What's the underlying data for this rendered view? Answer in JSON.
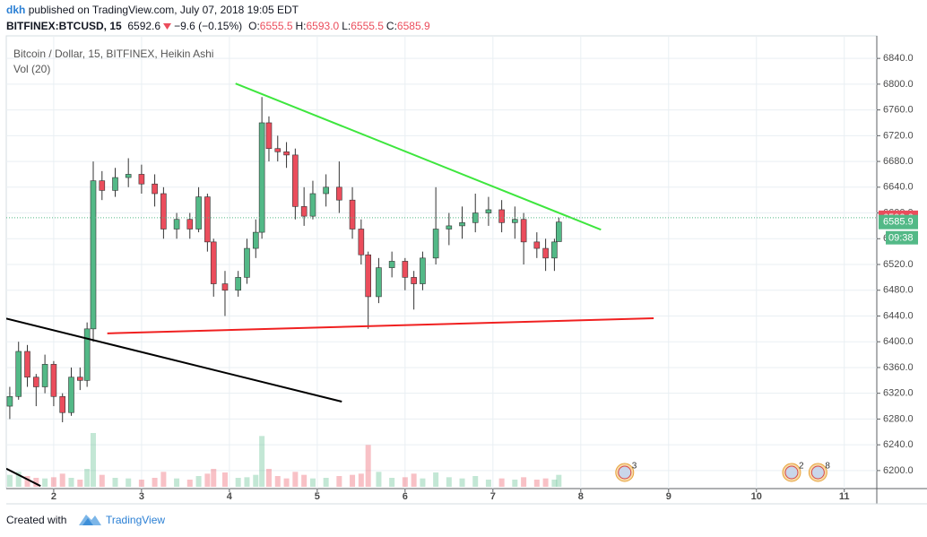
{
  "header": {
    "author": "dkh",
    "published": "published on TradingView.com, July 07, 2018 19:05 EDT",
    "symbol": "BITFINEX:BTCUSD, 15",
    "price": "6592.6",
    "change": "−9.6 (−0.15%)",
    "ohlc": [
      {
        "label": "O:",
        "value": "6555.5"
      },
      {
        "label": "H:",
        "value": "6593.0"
      },
      {
        "label": "L:",
        "value": "6555.5"
      },
      {
        "label": "C:",
        "value": "6585.9"
      }
    ]
  },
  "footer": {
    "created": "Created with",
    "brand": "TradingView"
  },
  "chart_data": {
    "type": "candlestick",
    "title": "Bitcoin / Dollar, 15, BITFINEX, Heikin Ashi",
    "volume_label": "Vol (20)",
    "up_color": "#53b987",
    "down_color": "#eb4d5c",
    "x": [
      1.5,
      1.6,
      1.7,
      1.8,
      1.9,
      2.0,
      2.1,
      2.2,
      2.3,
      2.38,
      2.45,
      2.55,
      2.7,
      2.85,
      3.0,
      3.15,
      3.25,
      3.4,
      3.55,
      3.65,
      3.75,
      3.82,
      3.95,
      4.1,
      4.2,
      4.3,
      4.37,
      4.45,
      4.55,
      4.65,
      4.75,
      4.85,
      4.95,
      5.1,
      5.25,
      5.4,
      5.5,
      5.58,
      5.7,
      5.85,
      6.0,
      6.1,
      6.2,
      6.35,
      6.5,
      6.65,
      6.8,
      6.95,
      7.1,
      7.25,
      7.35,
      7.5,
      7.6,
      7.7,
      7.75
    ],
    "open": [
      6300,
      6315,
      6385,
      6345,
      6330,
      6365,
      6315,
      6290,
      6345,
      6340,
      6420,
      6650,
      6635,
      6655,
      6660,
      6645,
      6630,
      6575,
      6590,
      6575,
      6625,
      6555,
      6490,
      6480,
      6500,
      6545,
      6570,
      6740,
      6700,
      6695,
      6690,
      6610,
      6595,
      6630,
      6640,
      6620,
      6575,
      6535,
      6470,
      6515,
      6525,
      6500,
      6490,
      6530,
      6575,
      6580,
      6585,
      6600,
      6605,
      6585,
      6590,
      6555,
      6545,
      6530,
      6555.5
    ],
    "high": [
      6330,
      6400,
      6395,
      6350,
      6380,
      6370,
      6320,
      6360,
      6360,
      6430,
      6680,
      6665,
      6670,
      6685,
      6675,
      6660,
      6640,
      6600,
      6600,
      6640,
      6630,
      6560,
      6510,
      6510,
      6560,
      6590,
      6780,
      6750,
      6720,
      6710,
      6700,
      6640,
      6650,
      6660,
      6680,
      6640,
      6590,
      6540,
      6530,
      6540,
      6530,
      6510,
      6540,
      6640,
      6600,
      6610,
      6630,
      6625,
      6620,
      6610,
      6600,
      6570,
      6560,
      6560,
      6593
    ],
    "low": [
      6280,
      6310,
      6330,
      6300,
      6320,
      6300,
      6275,
      6285,
      6325,
      6330,
      6400,
      6620,
      6625,
      6640,
      6630,
      6610,
      6560,
      6560,
      6560,
      6570,
      6540,
      6470,
      6440,
      6470,
      6490,
      6530,
      6560,
      6680,
      6680,
      6670,
      6590,
      6580,
      6590,
      6610,
      6600,
      6560,
      6520,
      6420,
      6460,
      6500,
      6480,
      6450,
      6480,
      6520,
      6550,
      6560,
      6570,
      6580,
      6570,
      6560,
      6520,
      6530,
      6510,
      6510,
      6555.5
    ],
    "close": [
      6315,
      6385,
      6345,
      6330,
      6365,
      6315,
      6290,
      6345,
      6340,
      6420,
      6650,
      6635,
      6655,
      6660,
      6645,
      6630,
      6575,
      6590,
      6575,
      6625,
      6555,
      6490,
      6480,
      6500,
      6545,
      6570,
      6740,
      6700,
      6695,
      6690,
      6610,
      6595,
      6630,
      6640,
      6620,
      6575,
      6535,
      6470,
      6515,
      6525,
      6500,
      6490,
      6530,
      6575,
      6580,
      6585,
      6600,
      6605,
      6585,
      6590,
      6555,
      6545,
      6530,
      6555,
      6585.9
    ],
    "volume": [
      20,
      25,
      18,
      15,
      14,
      16,
      22,
      15,
      12,
      30,
      90,
      20,
      15,
      14,
      12,
      15,
      25,
      14,
      12,
      18,
      22,
      30,
      24,
      15,
      16,
      20,
      85,
      30,
      18,
      14,
      25,
      20,
      14,
      15,
      18,
      20,
      22,
      70,
      25,
      15,
      16,
      22,
      14,
      24,
      16,
      14,
      18,
      12,
      14,
      12,
      16,
      12,
      14,
      12,
      20
    ],
    "lines": [
      {
        "color": "#3ee63e",
        "x": [
          4.07,
          8.23
        ],
        "y": [
          6801,
          6574
        ]
      },
      {
        "color": "#f02020",
        "x": [
          2.61,
          8.83
        ],
        "y": [
          6413,
          6436.5
        ]
      },
      {
        "color": "#000000",
        "x": [
          1.46,
          5.28
        ],
        "y": [
          6436,
          6307
        ]
      },
      {
        "color": "#000000",
        "x": [
          1.46,
          1.85
        ],
        "y": [
          6203,
          6176
        ]
      }
    ],
    "last_price": 6592.6,
    "last_close": 6585.9,
    "countdown": "09:38",
    "events": [
      {
        "x": 8.5,
        "label": "3"
      },
      {
        "x": 10.4,
        "label": "2"
      },
      {
        "x": 10.7,
        "label": "8"
      }
    ],
    "xlim": [
      1.46,
      11.37
    ],
    "xticks": [
      2,
      3,
      4,
      5,
      6,
      7,
      8,
      9,
      10,
      11
    ],
    "ylim": [
      6172,
      6875
    ],
    "yticks": [
      {
        "value": 6200,
        "label": "6200.0"
      },
      {
        "value": 6240,
        "label": "6240.0"
      },
      {
        "value": 6280,
        "label": "6280.0"
      },
      {
        "value": 6320,
        "label": "6320.0"
      },
      {
        "value": 6360,
        "label": "6360.0"
      },
      {
        "value": 6400,
        "label": "6400.0"
      },
      {
        "value": 6440,
        "label": "6440.0"
      },
      {
        "value": 6480,
        "label": "6480.0"
      },
      {
        "value": 6520,
        "label": "6520.0"
      },
      {
        "value": 6560,
        "label": "6560.0"
      },
      {
        "value": 6600,
        "label": "6600.0"
      },
      {
        "value": 6640,
        "label": "6640.0"
      },
      {
        "value": 6680,
        "label": "6680.0"
      },
      {
        "value": 6720,
        "label": "6720.0"
      },
      {
        "value": 6760,
        "label": "6760.0"
      },
      {
        "value": 6800,
        "label": "6800.0"
      },
      {
        "value": 6840,
        "label": "6840.0"
      }
    ],
    "grid": true
  }
}
